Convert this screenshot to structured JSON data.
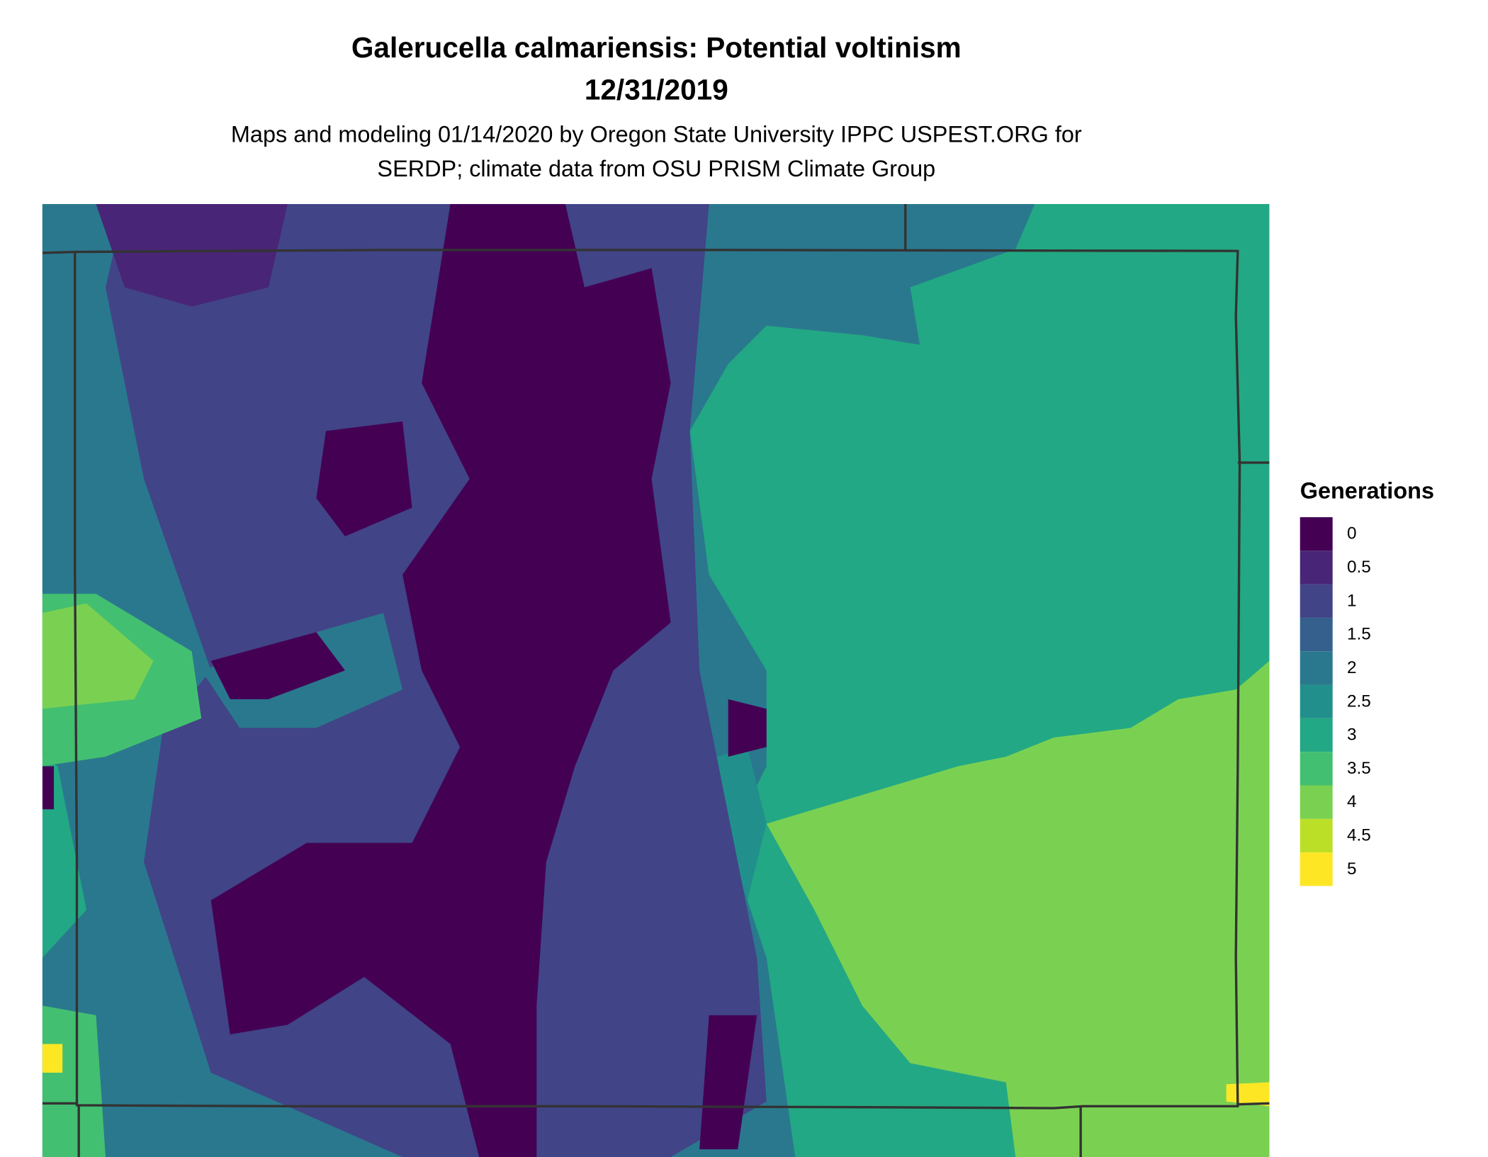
{
  "title": "Galerucella calmariensis: Potential voltinism",
  "date": "12/31/2019",
  "subtitle": [
    "Maps and modeling 01/14/2020 by Oregon State University IPPC USPEST.ORG for",
    "SERDP; climate data from OSU PRISM Climate Group"
  ],
  "legend": {
    "title": "Generations",
    "items": [
      {
        "value": 0,
        "color": "#440154"
      },
      {
        "value": 0.5,
        "color": "#482576"
      },
      {
        "value": 1,
        "color": "#414487"
      },
      {
        "value": 1.5,
        "color": "#35608d"
      },
      {
        "value": 2,
        "color": "#2a788e"
      },
      {
        "value": 2.5,
        "color": "#21908c"
      },
      {
        "value": 3,
        "color": "#22a884"
      },
      {
        "value": 3.5,
        "color": "#43bf71"
      },
      {
        "value": 4,
        "color": "#7ad151"
      },
      {
        "value": 4.5,
        "color": "#bbdf27"
      },
      {
        "value": 5,
        "color": "#fde725"
      }
    ]
  }
}
